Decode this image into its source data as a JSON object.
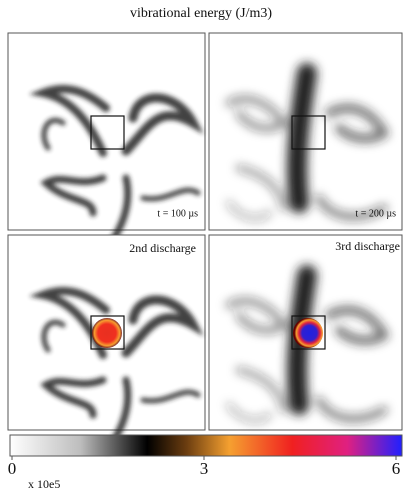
{
  "title": "vibrational energy (J/m3)",
  "panels": [
    {
      "label": "t = 100 µs"
    },
    {
      "label": "t = 200 µs"
    },
    {
      "label": "2nd discharge"
    },
    {
      "label": "3rd discharge"
    }
  ],
  "colorbar": {
    "range": [
      0,
      6
    ],
    "ticks": [
      0,
      3,
      6
    ],
    "multiplier": "x 10e5"
  }
}
